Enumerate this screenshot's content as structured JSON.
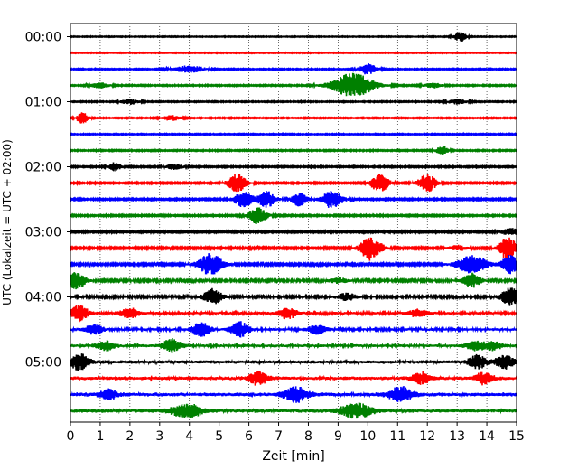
{
  "chart_data": {
    "type": "line",
    "title": "",
    "xlabel": "Zeit  [min]",
    "ylabel": "UTC (Lokalzeit = UTC + 02:00)",
    "xlim": [
      0,
      15
    ],
    "x_ticks": [
      "0",
      "1",
      "2",
      "3",
      "4",
      "5",
      "6",
      "7",
      "8",
      "9",
      "10",
      "11",
      "12",
      "13",
      "14",
      "15"
    ],
    "y_ticks": [
      "00:00",
      "01:00",
      "02:00",
      "03:00",
      "04:00",
      "05:00"
    ],
    "y_tick_rows": [
      0,
      4,
      8,
      12,
      16,
      20
    ],
    "grid": "vertical dotted lines at each minute",
    "trace_colors": [
      "#000000",
      "#ff0000",
      "#0000ff",
      "#008000"
    ],
    "row_count": 24,
    "row_interval_minutes": 15,
    "rows": [
      {
        "time": "00:00",
        "noise": 0.35,
        "events": [
          {
            "t": 13.1,
            "amp": 6,
            "width": 0.2
          }
        ]
      },
      {
        "time": "00:15",
        "noise": 0.35,
        "events": []
      },
      {
        "time": "00:30",
        "noise": 0.45,
        "events": [
          {
            "t": 4.0,
            "amp": 4,
            "width": 0.5
          },
          {
            "t": 10.0,
            "amp": 6,
            "width": 0.3
          }
        ]
      },
      {
        "time": "00:45",
        "noise": 0.5,
        "events": [
          {
            "t": 9.5,
            "amp": 14,
            "width": 0.7
          },
          {
            "t": 1.0,
            "amp": 3,
            "width": 0.3
          },
          {
            "t": 12.2,
            "amp": 3,
            "width": 0.3
          }
        ]
      },
      {
        "time": "01:00",
        "noise": 0.45,
        "events": [
          {
            "t": 2.0,
            "amp": 3,
            "width": 0.3
          },
          {
            "t": 13.0,
            "amp": 3,
            "width": 0.3
          }
        ]
      },
      {
        "time": "01:15",
        "noise": 0.45,
        "events": [
          {
            "t": 0.4,
            "amp": 6,
            "width": 0.2
          },
          {
            "t": 3.4,
            "amp": 3,
            "width": 0.3
          }
        ]
      },
      {
        "time": "01:30",
        "noise": 0.45,
        "events": []
      },
      {
        "time": "01:45",
        "noise": 0.5,
        "events": [
          {
            "t": 12.5,
            "amp": 5,
            "width": 0.2
          }
        ]
      },
      {
        "time": "02:00",
        "noise": 0.55,
        "events": [
          {
            "t": 1.5,
            "amp": 5,
            "width": 0.2
          },
          {
            "t": 3.5,
            "amp": 3,
            "width": 0.3
          }
        ]
      },
      {
        "time": "02:15",
        "noise": 0.6,
        "events": [
          {
            "t": 5.6,
            "amp": 10,
            "width": 0.3
          },
          {
            "t": 10.4,
            "amp": 10,
            "width": 0.3
          },
          {
            "t": 12.0,
            "amp": 10,
            "width": 0.3
          }
        ]
      },
      {
        "time": "02:30",
        "noise": 0.65,
        "events": [
          {
            "t": 5.8,
            "amp": 9,
            "width": 0.3
          },
          {
            "t": 6.6,
            "amp": 9,
            "width": 0.3
          },
          {
            "t": 7.7,
            "amp": 8,
            "width": 0.25
          },
          {
            "t": 8.8,
            "amp": 10,
            "width": 0.35
          }
        ]
      },
      {
        "time": "02:45",
        "noise": 0.6,
        "events": [
          {
            "t": 6.3,
            "amp": 9,
            "width": 0.3
          }
        ]
      },
      {
        "time": "03:00",
        "noise": 0.65,
        "events": [
          {
            "t": 14.8,
            "amp": 4,
            "width": 0.3
          }
        ]
      },
      {
        "time": "03:15",
        "noise": 0.75,
        "events": [
          {
            "t": 10.1,
            "amp": 14,
            "width": 0.35
          },
          {
            "t": 14.7,
            "amp": 12,
            "width": 0.3
          },
          {
            "t": 13.0,
            "amp": 3,
            "width": 0.3
          }
        ]
      },
      {
        "time": "03:30",
        "noise": 0.85,
        "events": [
          {
            "t": 4.7,
            "amp": 12,
            "width": 0.4
          },
          {
            "t": 13.5,
            "amp": 10,
            "width": 0.5
          },
          {
            "t": 14.8,
            "amp": 10,
            "width": 0.3
          }
        ]
      },
      {
        "time": "03:45",
        "noise": 0.95,
        "events": [
          {
            "t": 0.2,
            "amp": 9,
            "width": 0.3
          },
          {
            "t": 13.5,
            "amp": 8,
            "width": 0.3
          },
          {
            "t": 9.0,
            "amp": 3,
            "width": 0.3
          }
        ]
      },
      {
        "time": "04:00",
        "noise": 1.05,
        "events": [
          {
            "t": 4.8,
            "amp": 9,
            "width": 0.3
          },
          {
            "t": 9.3,
            "amp": 4,
            "width": 0.3
          },
          {
            "t": 14.8,
            "amp": 10,
            "width": 0.3
          }
        ]
      },
      {
        "time": "04:15",
        "noise": 1.25,
        "events": [
          {
            "t": 0.3,
            "amp": 9,
            "width": 0.3
          },
          {
            "t": 2.0,
            "amp": 6,
            "width": 0.3
          },
          {
            "t": 7.3,
            "amp": 6,
            "width": 0.3
          },
          {
            "t": 11.7,
            "amp": 4,
            "width": 0.3
          }
        ]
      },
      {
        "time": "04:30",
        "noise": 1.25,
        "events": [
          {
            "t": 4.4,
            "amp": 8,
            "width": 0.3
          },
          {
            "t": 5.7,
            "amp": 8,
            "width": 0.3
          },
          {
            "t": 0.8,
            "amp": 5,
            "width": 0.3
          },
          {
            "t": 8.3,
            "amp": 5,
            "width": 0.3
          }
        ]
      },
      {
        "time": "04:45",
        "noise": 1.35,
        "events": [
          {
            "t": 3.4,
            "amp": 7,
            "width": 0.3
          },
          {
            "t": 1.2,
            "amp": 5,
            "width": 0.3
          },
          {
            "t": 13.6,
            "amp": 5,
            "width": 0.3
          },
          {
            "t": 14.2,
            "amp": 5,
            "width": 0.3
          }
        ]
      },
      {
        "time": "05:00",
        "noise": 1.6,
        "events": [
          {
            "t": 0.3,
            "amp": 9,
            "width": 0.3
          },
          {
            "t": 13.7,
            "amp": 7,
            "width": 0.3
          },
          {
            "t": 14.6,
            "amp": 7,
            "width": 0.3
          }
        ]
      },
      {
        "time": "05:15",
        "noise": 1.6,
        "events": [
          {
            "t": 6.3,
            "amp": 7,
            "width": 0.3
          },
          {
            "t": 11.8,
            "amp": 6,
            "width": 0.3
          },
          {
            "t": 13.9,
            "amp": 6,
            "width": 0.3
          }
        ]
      },
      {
        "time": "05:30",
        "noise": 1.75,
        "events": [
          {
            "t": 7.6,
            "amp": 8,
            "width": 0.4
          },
          {
            "t": 11.1,
            "amp": 8,
            "width": 0.4
          },
          {
            "t": 1.3,
            "amp": 5,
            "width": 0.3
          }
        ]
      },
      {
        "time": "05:45",
        "noise": 1.75,
        "events": [
          {
            "t": 3.9,
            "amp": 7,
            "width": 0.5
          },
          {
            "t": 9.6,
            "amp": 8,
            "width": 0.5
          }
        ]
      }
    ]
  }
}
